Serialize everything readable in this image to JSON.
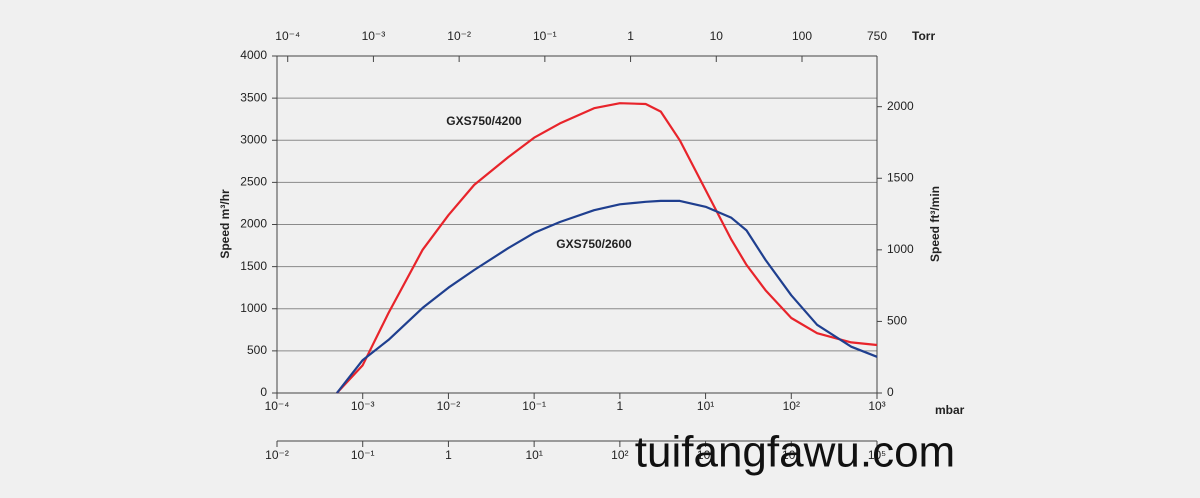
{
  "chart_data": {
    "type": "line",
    "x_label": "mbar",
    "x2_label": "Torr",
    "y_label": "Speed  m³/hr",
    "y2_label": "Speed  ft³/min",
    "log_x": true,
    "grid": true,
    "xlim": [
      0.0001,
      1000
    ],
    "xticks": [
      {
        "value": 0.0001,
        "label": "10⁻⁴"
      },
      {
        "value": 0.001,
        "label": "10⁻³"
      },
      {
        "value": 0.01,
        "label": "10⁻²"
      },
      {
        "value": 0.1,
        "label": "10⁻¹"
      },
      1,
      {
        "value": 10,
        "label": "10¹"
      },
      {
        "value": 100,
        "label": "10²"
      },
      {
        "value": 1000,
        "label": "10³"
      }
    ],
    "x2lim": [
      7.5006e-05,
      750
    ],
    "x2ticks": [
      {
        "value": 0.0001,
        "label": "10⁻⁴"
      },
      {
        "value": 0.001,
        "label": "10⁻³"
      },
      {
        "value": 0.01,
        "label": "10⁻²"
      },
      {
        "value": 0.1,
        "label": "10⁻¹"
      },
      1,
      10,
      100,
      750
    ],
    "x3lim": [
      0.01,
      100000
    ],
    "x3ticks": [
      {
        "value": 0.01,
        "label": "10⁻²"
      },
      {
        "value": 0.1,
        "label": "10⁻¹"
      },
      1,
      {
        "value": 10,
        "label": "10¹"
      },
      {
        "value": 100,
        "label": "10²"
      },
      {
        "value": 1000,
        "label": "10³"
      },
      {
        "value": 10000,
        "label": "10⁴"
      },
      {
        "value": 100000,
        "label": "10⁵"
      }
    ],
    "ylim": [
      0,
      4000
    ],
    "yticks": [
      0,
      500,
      1000,
      1500,
      2000,
      2500,
      3000,
      3500,
      4000
    ],
    "y2lim": [
      0,
      2354
    ],
    "y2ticks": [
      0,
      500,
      1000,
      1500,
      2000
    ],
    "x": [
      0.0005,
      0.001,
      0.002,
      0.005,
      0.01,
      0.02,
      0.05,
      0.1,
      0.2,
      0.5,
      1,
      2,
      3,
      5,
      10,
      20,
      30,
      50,
      100,
      200,
      500,
      1000
    ],
    "series": [
      {
        "name": "GXS750/4200",
        "color": "#e8242b",
        "values": [
          0,
          330,
          950,
          1700,
          2110,
          2470,
          2800,
          3030,
          3200,
          3380,
          3440,
          3430,
          3340,
          3000,
          2410,
          1820,
          1520,
          1220,
          890,
          710,
          600,
          570
        ]
      },
      {
        "name": "GXS750/2600",
        "color": "#1f3f8f",
        "values": [
          0,
          390,
          630,
          1010,
          1250,
          1460,
          1720,
          1900,
          2030,
          2170,
          2240,
          2270,
          2280,
          2280,
          2210,
          2080,
          1930,
          1580,
          1160,
          810,
          550,
          430
        ]
      }
    ],
    "watermark": "tuifangfawu.com"
  }
}
